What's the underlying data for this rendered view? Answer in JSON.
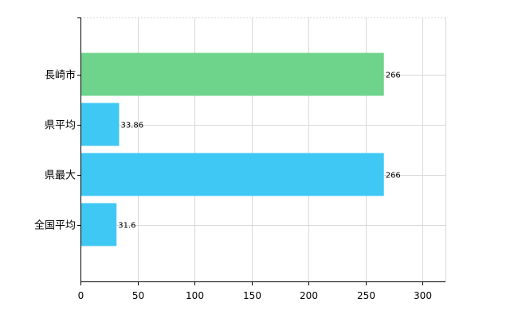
{
  "chart_data": {
    "type": "bar",
    "orientation": "horizontal",
    "categories": [
      "長崎市",
      "県平均",
      "県最大",
      "全国平均"
    ],
    "values": [
      266,
      33.86,
      266,
      31.6
    ],
    "data_labels": [
      "266",
      "33.86",
      "266",
      "31.6"
    ],
    "colors": [
      "#6ed48c",
      "#40c8f5",
      "#40c8f5",
      "#40c8f5"
    ],
    "x_ticks": [
      "0",
      "50",
      "100",
      "150",
      "200",
      "250",
      "300"
    ],
    "xlim": [
      0,
      320
    ],
    "title": "",
    "xlabel": "",
    "ylabel": "",
    "grid": true,
    "legend": "none",
    "grid_color": "#d9d9d9",
    "axis_color": "#000000"
  }
}
